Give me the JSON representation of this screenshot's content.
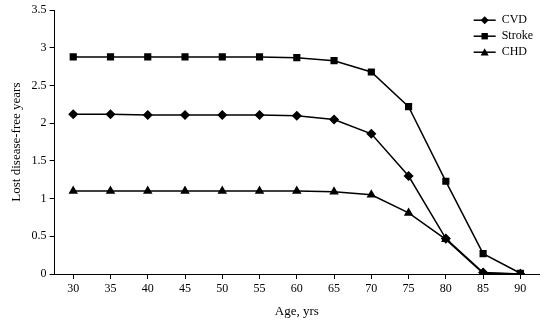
{
  "chart_data": {
    "type": "line",
    "x_label": "Age, yrs",
    "y_label": "Lost disease-free years",
    "categories": [
      "30",
      "35",
      "40",
      "45",
      "50",
      "55",
      "60",
      "65",
      "70",
      "75",
      "80",
      "85",
      "90"
    ],
    "series": [
      {
        "name": "CVD",
        "color": "#000000",
        "marker": "diamond",
        "values": [
          2.12,
          2.12,
          2.11,
          2.11,
          2.11,
          2.11,
          2.1,
          2.05,
          1.86,
          1.3,
          0.47,
          0.02,
          0
        ]
      },
      {
        "name": "Stroke",
        "color": "#000000",
        "marker": "square",
        "values": [
          2.88,
          2.88,
          2.88,
          2.88,
          2.88,
          2.88,
          2.87,
          2.83,
          2.68,
          2.22,
          1.23,
          0.27,
          0.01
        ]
      },
      {
        "name": "CHD",
        "color": "#000000",
        "marker": "triangle",
        "values": [
          1.1,
          1.1,
          1.1,
          1.1,
          1.1,
          1.1,
          1.1,
          1.09,
          1.05,
          0.81,
          0.46,
          0.01,
          0
        ]
      }
    ],
    "ylim": [
      0,
      3.5
    ],
    "yticks": [
      0,
      0.5,
      1,
      1.5,
      2,
      2.5,
      3,
      3.5
    ],
    "grid": false,
    "legend": "top-right"
  }
}
